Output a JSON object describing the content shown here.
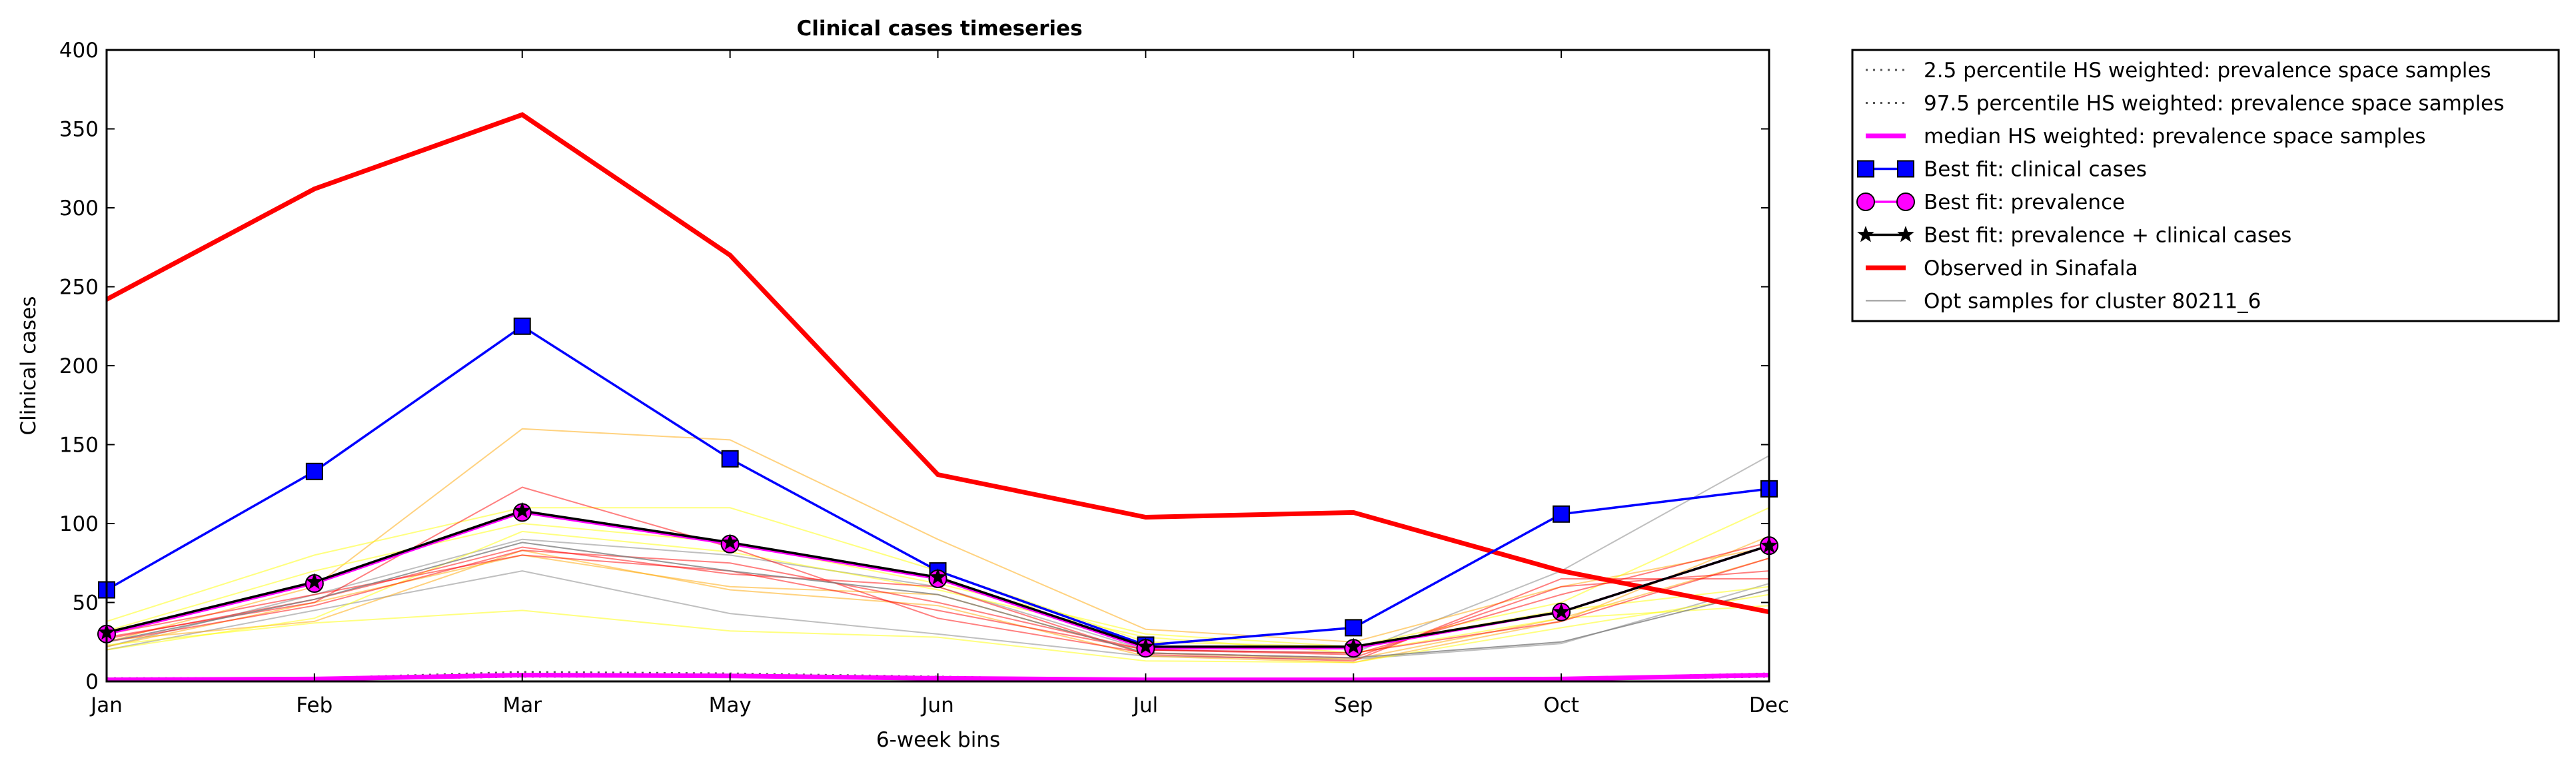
{
  "chart_data": {
    "type": "line",
    "title": "Clinical cases timeseries",
    "xlabel": "6-week bins",
    "ylabel": "Clinical cases",
    "ylim": [
      0,
      400
    ],
    "yticks": [
      0,
      50,
      100,
      150,
      200,
      250,
      300,
      350,
      400
    ],
    "categories": [
      "Jan",
      "Feb",
      "Mar",
      "May",
      "Jun",
      "Jul",
      "Sep",
      "Oct",
      "Dec"
    ],
    "grid": false,
    "legend_position": "outside right, top",
    "series": [
      {
        "name": "2.5 percentile HS weighted: prevalence space samples",
        "color": "#555555",
        "style": "dotted",
        "values": [
          1,
          1,
          3,
          3,
          2,
          1,
          1,
          1,
          3
        ]
      },
      {
        "name": "97.5 percentile HS weighted: prevalence space samples",
        "color": "#555555",
        "style": "dotted",
        "values": [
          2,
          2,
          6,
          5,
          3,
          1,
          1,
          2,
          5
        ]
      },
      {
        "name": "median HS weighted: prevalence space samples",
        "color": "#ff00ff",
        "style": "solid-thick",
        "values": [
          1,
          1.5,
          4,
          3.5,
          2,
          1,
          1,
          1.5,
          4
        ]
      },
      {
        "name": "Best fit: clinical cases",
        "color": "#0000ff",
        "marker": "square",
        "values": [
          58,
          133,
          225,
          141,
          70,
          23,
          34,
          106,
          122
        ]
      },
      {
        "name": "Best fit: prevalence",
        "color": "#ff00ff",
        "marker": "circle",
        "values": [
          30,
          62,
          107,
          87,
          65,
          21,
          21,
          44,
          86
        ]
      },
      {
        "name": "Best fit: prevalence + clinical cases",
        "color": "#000000",
        "marker": "star",
        "values": [
          31,
          63,
          108,
          88,
          66,
          22,
          22,
          44,
          86
        ]
      },
      {
        "name": "Observed in Sinafala",
        "color": "#ff0000",
        "style": "thick",
        "values": [
          242,
          312,
          359,
          270,
          131,
          104,
          107,
          70,
          44
        ]
      },
      {
        "name": "Opt samples for cluster 80211_6",
        "color": "#808080",
        "style": "thin",
        "values": [
          25,
          52,
          88,
          70,
          55,
          18,
          15,
          25,
          58
        ]
      }
    ],
    "samples": [
      {
        "color": "#808080",
        "values": [
          22,
          55,
          90,
          80,
          60,
          20,
          18,
          70,
          143
        ]
      },
      {
        "color": "#808080",
        "values": [
          20,
          45,
          70,
          43,
          30,
          16,
          14,
          24,
          62
        ]
      },
      {
        "color": "#ffa500",
        "values": [
          25,
          60,
          160,
          153,
          90,
          33,
          25,
          60,
          85
        ]
      },
      {
        "color": "#ffa500",
        "values": [
          22,
          50,
          80,
          60,
          55,
          18,
          14,
          40,
          78
        ]
      },
      {
        "color": "#ffa500",
        "values": [
          26,
          38,
          83,
          58,
          48,
          16,
          12,
          38,
          92
        ]
      },
      {
        "color": "#ffff00",
        "values": [
          38,
          80,
          110,
          110,
          70,
          25,
          22,
          50,
          110
        ]
      },
      {
        "color": "#ffff00",
        "values": [
          23,
          37,
          45,
          32,
          28,
          13,
          12,
          34,
          55
        ]
      },
      {
        "color": "#ffff00",
        "values": [
          32,
          70,
          100,
          88,
          62,
          30,
          22,
          45,
          60
        ]
      },
      {
        "color": "#ffff00",
        "values": [
          20,
          40,
          95,
          82,
          58,
          28,
          18,
          40,
          48
        ]
      },
      {
        "color": "#ff0000",
        "values": [
          28,
          50,
          123,
          85,
          40,
          18,
          15,
          60,
          70
        ]
      },
      {
        "color": "#ff0000",
        "values": [
          25,
          48,
          83,
          75,
          50,
          20,
          17,
          55,
          88
        ]
      },
      {
        "color": "#ff0000",
        "values": [
          30,
          55,
          80,
          70,
          45,
          20,
          18,
          38,
          78
        ]
      },
      {
        "color": "#ff0000",
        "values": [
          27,
          52,
          85,
          68,
          60,
          17,
          13,
          65,
          65
        ]
      }
    ]
  }
}
